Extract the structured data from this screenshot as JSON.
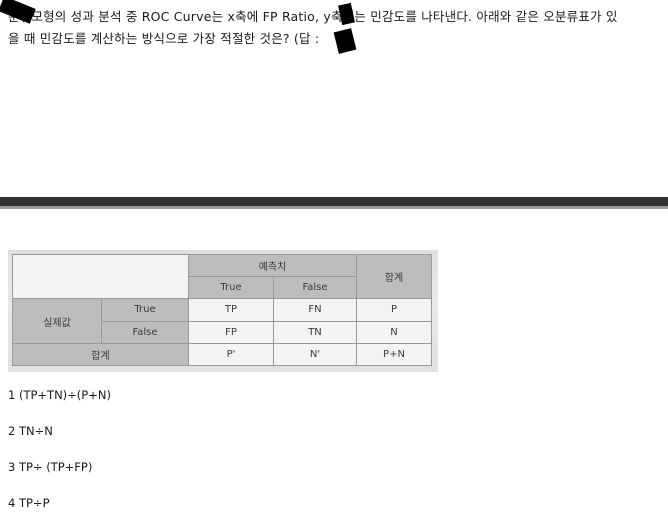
{
  "question": {
    "line1": "분류모형의 성과 분석 중 ROC Curve는 x축에 FP Ratio, y축에는 민감도를 나타낸다. 아래와 같은 오분류표가 있",
    "line2": "을 때 민감도를 계산하는 방식으로 가장 적절한 것은? (답 :"
  },
  "matrix": {
    "predicted_header": "예측치",
    "total_header": "합계",
    "pred_true": "True",
    "pred_false": "False",
    "actual_label": "실제값",
    "actual_true": "True",
    "actual_false": "False",
    "total_row_label": "합계",
    "cells": {
      "tp": "TP",
      "fn": "FN",
      "p": "P",
      "fp": "FP",
      "tn": "TN",
      "n": "N",
      "p_prime": "P'",
      "n_prime": "N'",
      "pn": "P+N"
    }
  },
  "options": [
    "1 (TP+TN)÷(P+N)",
    "2 TN÷N",
    "3 TP÷ (TP+FP)",
    "4 TP÷P"
  ]
}
